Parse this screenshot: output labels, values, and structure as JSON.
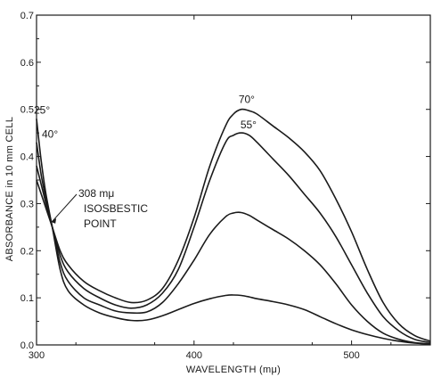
{
  "chart_data": {
    "type": "line",
    "xlabel": "WAVELENGTH (mμ)",
    "ylabel": "ABSORBANCE in 10 mm CELL",
    "xlim": [
      300,
      550
    ],
    "ylim": [
      0.0,
      0.7
    ],
    "x_ticks": [
      "300",
      "400",
      "500"
    ],
    "y_ticks": [
      "0.0",
      "0.1",
      "0.2",
      "0.3",
      "0.4",
      "0.5",
      "0.6",
      "0.7"
    ],
    "x_tick_values": [
      300,
      400,
      500
    ],
    "y_tick_values": [
      0.0,
      0.1,
      0.2,
      0.3,
      0.4,
      0.5,
      0.6,
      0.7
    ],
    "grid": false,
    "annotation": {
      "lines": [
        "308 mμ",
        "ISOSBESTIC",
        "POINT"
      ],
      "target": [
        308,
        0.265
      ]
    },
    "series": [
      {
        "name": "70°",
        "x": [
          300,
          303,
          306,
          310,
          315,
          320,
          330,
          340,
          350,
          360,
          370,
          380,
          390,
          400,
          410,
          420,
          425,
          430,
          435,
          440,
          450,
          460,
          470,
          480,
          490,
          500,
          510,
          520,
          530,
          540,
          550
        ],
        "y": [
          0.35,
          0.32,
          0.29,
          0.25,
          0.2,
          0.17,
          0.135,
          0.115,
          0.1,
          0.09,
          0.095,
          0.12,
          0.18,
          0.27,
          0.38,
          0.465,
          0.49,
          0.5,
          0.497,
          0.49,
          0.465,
          0.44,
          0.41,
          0.37,
          0.31,
          0.24,
          0.16,
          0.09,
          0.045,
          0.02,
          0.008
        ]
      },
      {
        "name": "55°",
        "x": [
          300,
          303,
          306,
          310,
          315,
          320,
          330,
          340,
          350,
          360,
          370,
          380,
          390,
          400,
          410,
          420,
          425,
          430,
          435,
          440,
          450,
          460,
          470,
          480,
          490,
          500,
          510,
          520,
          530,
          540,
          550
        ],
        "y": [
          0.38,
          0.34,
          0.3,
          0.25,
          0.19,
          0.155,
          0.12,
          0.1,
          0.085,
          0.078,
          0.085,
          0.11,
          0.16,
          0.25,
          0.35,
          0.43,
          0.445,
          0.45,
          0.445,
          0.43,
          0.395,
          0.36,
          0.32,
          0.28,
          0.23,
          0.17,
          0.11,
          0.06,
          0.03,
          0.012,
          0.005
        ]
      },
      {
        "name": "40°",
        "x": [
          300,
          303,
          306,
          310,
          315,
          320,
          330,
          340,
          350,
          360,
          370,
          380,
          390,
          400,
          410,
          420,
          425,
          430,
          435,
          440,
          450,
          460,
          470,
          480,
          490,
          500,
          510,
          520,
          530,
          540,
          550
        ],
        "y": [
          0.43,
          0.36,
          0.31,
          0.25,
          0.175,
          0.135,
          0.1,
          0.085,
          0.072,
          0.068,
          0.07,
          0.09,
          0.13,
          0.18,
          0.235,
          0.272,
          0.28,
          0.281,
          0.275,
          0.265,
          0.245,
          0.225,
          0.2,
          0.17,
          0.13,
          0.085,
          0.05,
          0.025,
          0.012,
          0.005,
          0.002
        ]
      },
      {
        "name": "25°",
        "x": [
          300,
          303,
          306,
          310,
          315,
          320,
          330,
          340,
          350,
          360,
          370,
          380,
          390,
          400,
          410,
          420,
          425,
          430,
          435,
          440,
          450,
          460,
          470,
          480,
          490,
          500,
          510,
          520,
          530,
          540,
          550
        ],
        "y": [
          0.48,
          0.39,
          0.32,
          0.25,
          0.16,
          0.115,
          0.085,
          0.068,
          0.058,
          0.052,
          0.053,
          0.062,
          0.075,
          0.088,
          0.098,
          0.105,
          0.106,
          0.105,
          0.102,
          0.098,
          0.092,
          0.085,
          0.075,
          0.06,
          0.045,
          0.032,
          0.022,
          0.014,
          0.008,
          0.004,
          0.002
        ]
      }
    ]
  }
}
